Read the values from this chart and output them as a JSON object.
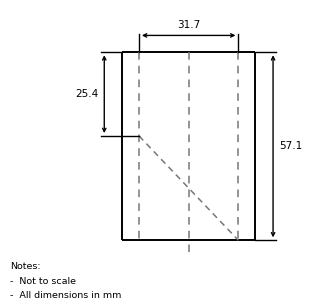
{
  "background_color": "#ffffff",
  "line_color": "#000000",
  "dashed_color": "#777777",
  "dim_width_label": "31.7",
  "dim_min_depth_label": "25.4",
  "dim_max_depth_label": "57.1",
  "notes": [
    "Notes:",
    "-  Not to scale",
    "-  All dimensions in mm"
  ],
  "xl": 0.42,
  "xr": 0.72,
  "xlo": 0.37,
  "xro": 0.77,
  "yt": 0.83,
  "yb": 0.22,
  "lw_solid": 1.4,
  "lw_dim": 1.0,
  "lw_dash": 1.1
}
